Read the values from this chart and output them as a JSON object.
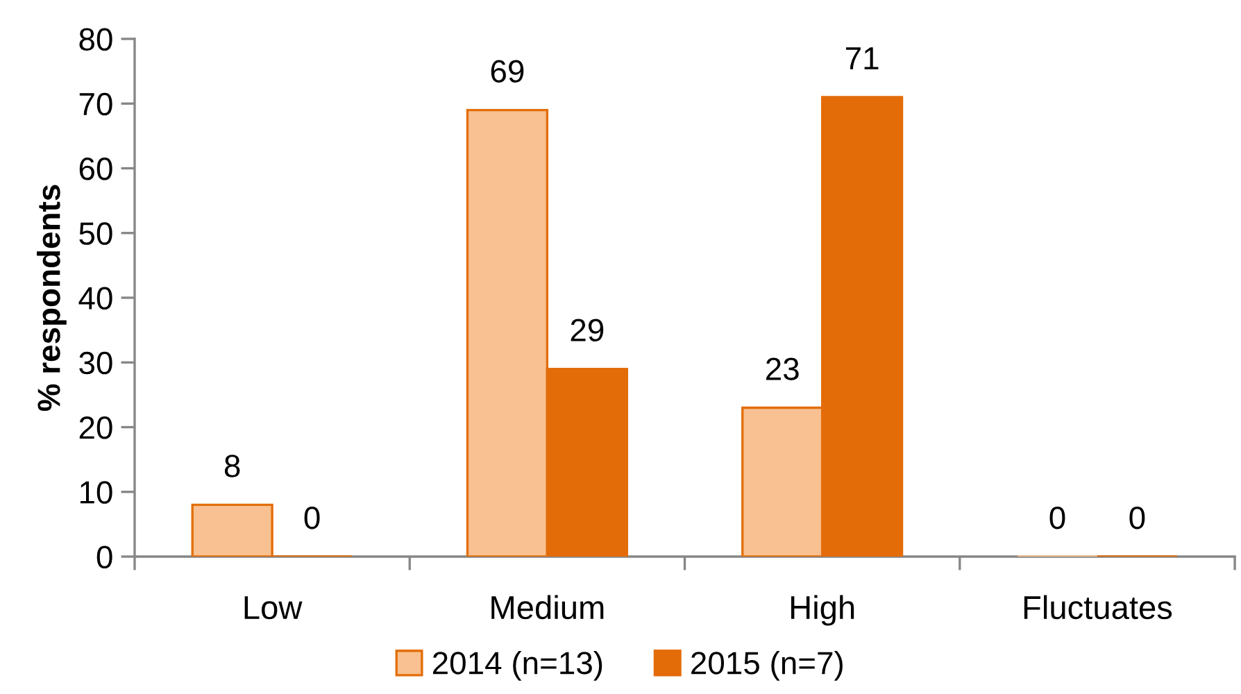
{
  "chart_data": {
    "type": "bar",
    "ylabel": "% respondents",
    "categories": [
      "Low",
      "Medium",
      "High",
      "Fluctuates"
    ],
    "series": [
      {
        "name": "2014 (n=13)",
        "color": "#f9c191",
        "values": [
          8,
          69,
          23,
          0
        ]
      },
      {
        "name": "2015 (n=7)",
        "color": "#e36c09",
        "values": [
          0,
          29,
          71,
          0
        ]
      }
    ],
    "ylim": [
      0,
      80
    ],
    "yticks": [
      0,
      10,
      20,
      30,
      40,
      50,
      60,
      70,
      80
    ],
    "data_labels": true,
    "legend": "bottom"
  }
}
